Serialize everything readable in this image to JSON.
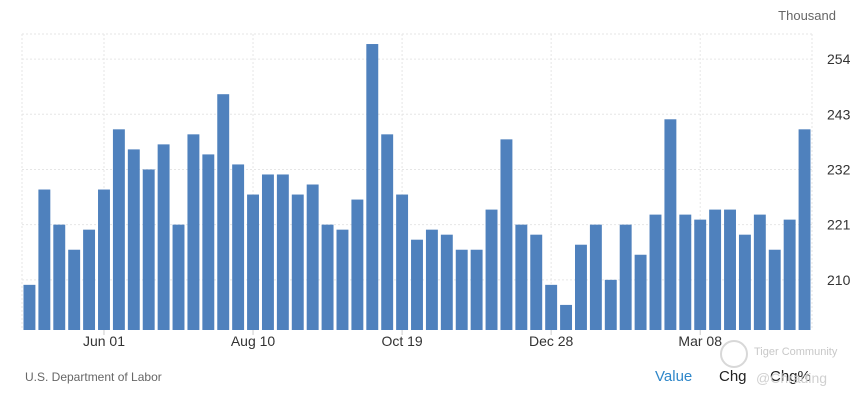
{
  "unit": "Thousand",
  "source": "U.S. Department of Labor",
  "controls": {
    "value": "Value",
    "chg": "Chg",
    "chgp": "Chg%"
  },
  "watermark": {
    "line1": "Tiger Community",
    "line2": "@Chrading"
  },
  "colors": {
    "bar": "#4f81bd",
    "grid": "#e6e6e6",
    "active": "#2f87c9"
  },
  "chart_data": {
    "type": "bar",
    "title": "",
    "xlabel": "",
    "ylabel": "",
    "unit": "Thousand",
    "ylim": [
      200,
      259
    ],
    "yticks": [
      210,
      221,
      232,
      243,
      254
    ],
    "yaxis_position": "right",
    "grid": true,
    "xtick_labels": [
      {
        "label": "Jun 01",
        "index": 5
      },
      {
        "label": "Aug 10",
        "index": 15
      },
      {
        "label": "Oct 19",
        "index": 25
      },
      {
        "label": "Dec 28",
        "index": 35
      },
      {
        "label": "Mar 08",
        "index": 45
      }
    ],
    "values": [
      209,
      228,
      221,
      216,
      220,
      228,
      240,
      236,
      232,
      237,
      221,
      239,
      235,
      247,
      233,
      227,
      231,
      231,
      227,
      229,
      221,
      220,
      226,
      257,
      239,
      227,
      218,
      220,
      219,
      216,
      216,
      224,
      238,
      221,
      219,
      209,
      205,
      217,
      221,
      210,
      221,
      215,
      223,
      242,
      223,
      222,
      224,
      224,
      219,
      223,
      216,
      222,
      240
    ]
  }
}
